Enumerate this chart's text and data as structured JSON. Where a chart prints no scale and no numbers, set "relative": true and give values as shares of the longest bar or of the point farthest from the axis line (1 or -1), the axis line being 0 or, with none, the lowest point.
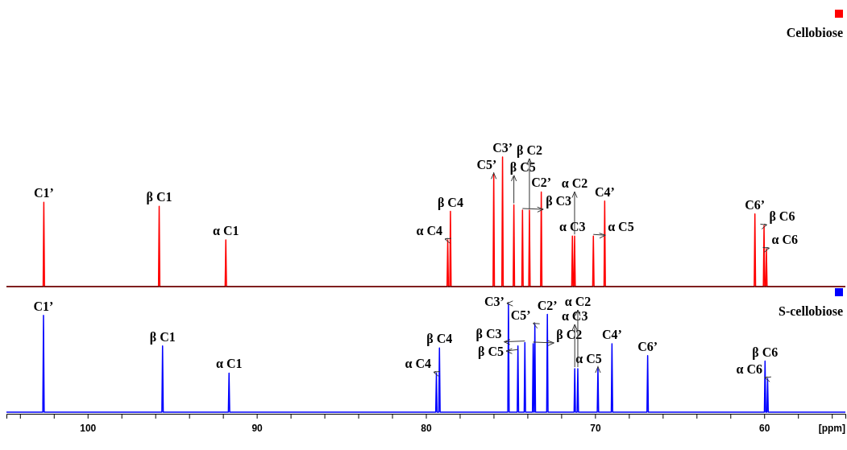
{
  "chart_data": [
    {
      "type": "line",
      "relative": true,
      "xlim": [
        104.8,
        55.2
      ],
      "tick_labels": false,
      "legend": "top right",
      "series": [
        {
          "name": "Cellobiose",
          "color": "#ff0000",
          "x": [
            104.8,
            102.63,
            102.59,
            102.55,
            95.81,
            95.77,
            95.73,
            91.87,
            91.83,
            91.79,
            78.75,
            78.71,
            78.67,
            78.59,
            78.55,
            78.51,
            76.03,
            75.99,
            75.95,
            75.51,
            75.47,
            75.43,
            74.84,
            74.8,
            74.76,
            74.33,
            74.29,
            74.25,
            73.92,
            73.88,
            73.84,
            73.22,
            73.18,
            73.14,
            71.38,
            71.34,
            71.3,
            71.25,
            71.21,
            71.17,
            70.14,
            70.1,
            70.06,
            69.47,
            69.43,
            69.39,
            60.59,
            60.55,
            60.51,
            60.05,
            60.01,
            59.97,
            59.91,
            59.87,
            59.83,
            55.2
          ],
          "values": [
            0,
            0,
            0.65,
            0,
            0,
            0.62,
            0,
            0,
            0.36,
            0,
            0,
            0.36,
            0,
            0,
            0.58,
            0,
            0,
            0.87,
            0,
            0,
            1,
            0,
            0,
            0.63,
            0,
            0,
            0.59,
            0,
            0,
            0.59,
            0,
            0,
            0.73,
            0,
            0,
            0.39,
            0,
            0,
            0.39,
            0,
            0,
            0.39,
            0,
            0,
            0.66,
            0,
            0,
            0.56,
            0,
            0,
            0.47,
            0,
            0,
            0.29,
            0,
            0
          ]
        }
      ],
      "annotations": [
        {
          "text": "C1’",
          "x": 102.59,
          "y": 0.65
        },
        {
          "text": "β C1",
          "x": 95.77,
          "y": 0.62
        },
        {
          "text": "α C1",
          "x": 91.83,
          "y": 0.36
        },
        {
          "text": "α C4",
          "x": 78.71,
          "y": 0.36
        },
        {
          "text": "β C4",
          "x": 78.55,
          "y": 0.58
        },
        {
          "text": "C5’",
          "x": 75.99,
          "y": 0.87
        },
        {
          "text": "C3’",
          "x": 75.47,
          "y": 1
        },
        {
          "text": "β C5",
          "x": 74.8,
          "y": 0.63
        },
        {
          "text": "β C3",
          "x": 74.29,
          "y": 0.59
        },
        {
          "text": "β C2",
          "x": 73.88,
          "y": 0.59
        },
        {
          "text": "C2’",
          "x": 73.18,
          "y": 0.73
        },
        {
          "text": "α C3",
          "x": 71.34,
          "y": 0.39
        },
        {
          "text": "α C2",
          "x": 71.21,
          "y": 0.39
        },
        {
          "text": "α C5",
          "x": 70.1,
          "y": 0.39
        },
        {
          "text": "C4’",
          "x": 69.43,
          "y": 0.66
        },
        {
          "text": "C6’",
          "x": 60.55,
          "y": 0.56
        },
        {
          "text": "β C6",
          "x": 60.01,
          "y": 0.47
        },
        {
          "text": "α C6",
          "x": 59.87,
          "y": 0.29
        }
      ]
    },
    {
      "type": "line",
      "relative": true,
      "xlim": [
        104.8,
        55.2
      ],
      "xlabel": "[ppm]",
      "legend": "top right",
      "xticks": [
        {
          "value": 104,
          "label": null
        },
        {
          "value": 102,
          "label": null
        },
        100,
        {
          "value": 98,
          "label": null
        },
        {
          "value": 96,
          "label": null
        },
        {
          "value": 94,
          "label": null
        },
        {
          "value": 92,
          "label": null
        },
        90,
        {
          "value": 88,
          "label": null
        },
        {
          "value": 86,
          "label": null
        },
        {
          "value": 84,
          "label": null
        },
        {
          "value": 82,
          "label": null
        },
        80,
        {
          "value": 78,
          "label": null
        },
        {
          "value": 76,
          "label": null
        },
        {
          "value": 74,
          "label": null
        },
        {
          "value": 72,
          "label": null
        },
        70,
        {
          "value": 68,
          "label": null
        },
        {
          "value": 66,
          "label": null
        },
        {
          "value": 64,
          "label": null
        },
        {
          "value": 62,
          "label": null
        },
        60,
        {
          "value": 58,
          "label": null
        },
        {
          "value": 56,
          "label": null
        }
      ],
      "series": [
        {
          "name": "S-cellobiose",
          "color": "#0000ff",
          "x": [
            104.8,
            102.65,
            102.61,
            102.57,
            95.61,
            95.57,
            95.53,
            91.68,
            91.64,
            91.6,
            79.42,
            79.38,
            79.34,
            79.24,
            79.2,
            79.16,
            75.16,
            75.12,
            75.08,
            74.6,
            74.56,
            74.52,
            74.19,
            74.15,
            74.11,
            73.7,
            73.66,
            73.62,
            73.6,
            73.56,
            73.52,
            72.86,
            72.82,
            72.78,
            71.24,
            71.2,
            71.16,
            71.06,
            71.02,
            70.98,
            69.87,
            69.83,
            69.79,
            69.04,
            69,
            68.96,
            66.93,
            66.89,
            66.85,
            59.99,
            59.95,
            59.91,
            59.84,
            59.8,
            59.76,
            55.2
          ],
          "values": [
            0,
            0,
            0.89,
            0,
            0,
            0.61,
            0,
            0,
            0.36,
            0,
            0,
            0.36,
            0,
            0,
            0.59,
            0,
            0,
            1,
            0,
            0,
            0.61,
            0,
            0,
            0.64,
            0,
            0,
            0.63,
            0,
            0,
            0.81,
            0,
            0,
            0.9,
            0,
            0,
            0.4,
            0,
            0,
            0.4,
            0,
            0,
            0.41,
            0,
            0,
            0.63,
            0,
            0,
            0.52,
            0,
            0,
            0.47,
            0,
            0,
            0.31,
            0,
            0
          ]
        }
      ],
      "annotations": [
        {
          "text": "C1’",
          "x": 102.61,
          "y": 0.89
        },
        {
          "text": "β C1",
          "x": 95.57,
          "y": 0.61
        },
        {
          "text": "α C1",
          "x": 91.64,
          "y": 0.36
        },
        {
          "text": "α C4",
          "x": 79.38,
          "y": 0.36
        },
        {
          "text": "β C4",
          "x": 79.2,
          "y": 0.59
        },
        {
          "text": "C3’",
          "x": 75.12,
          "y": 1
        },
        {
          "text": "β C5",
          "x": 74.56,
          "y": 0.61
        },
        {
          "text": "β C3",
          "x": 74.15,
          "y": 0.64
        },
        {
          "text": "β C2",
          "x": 73.66,
          "y": 0.63
        },
        {
          "text": "C5’",
          "x": 73.56,
          "y": 0.81
        },
        {
          "text": "C2’",
          "x": 72.82,
          "y": 0.9
        },
        {
          "text": "α C3",
          "x": 71.2,
          "y": 0.4
        },
        {
          "text": "α C2",
          "x": 71.02,
          "y": 0.4
        },
        {
          "text": "α C5",
          "x": 69.83,
          "y": 0.41
        },
        {
          "text": "C4’",
          "x": 69,
          "y": 0.63
        },
        {
          "text": "C6’",
          "x": 66.89,
          "y": 0.52
        },
        {
          "text": "β C6",
          "x": 59.95,
          "y": 0.47
        },
        {
          "text": "α C6",
          "x": 59.8,
          "y": 0.31
        }
      ]
    }
  ]
}
